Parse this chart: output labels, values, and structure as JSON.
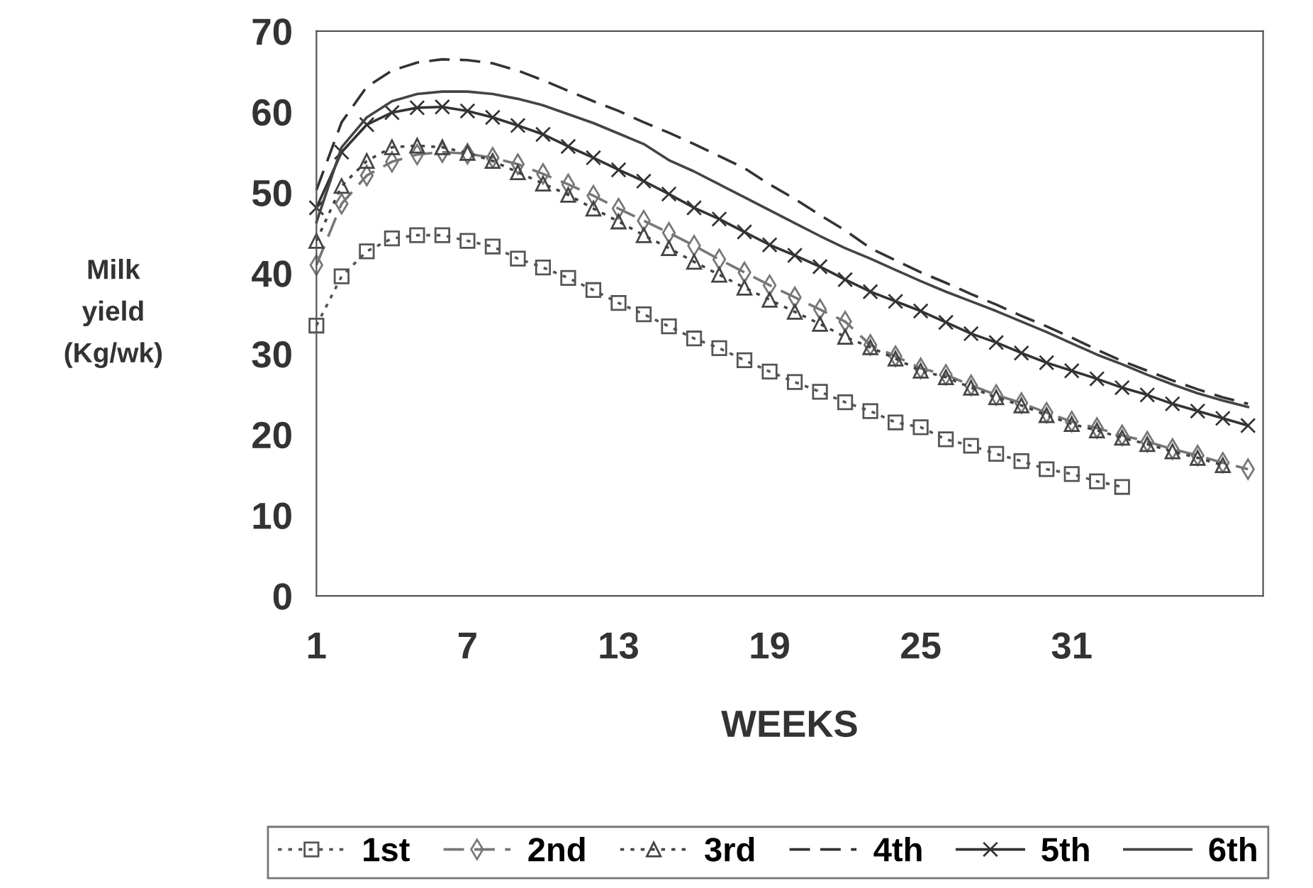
{
  "chart_data": {
    "type": "line",
    "xlabel": "WEEKS",
    "ylabel": "Milk\nyield\n(Kg/wk)",
    "x": [
      1,
      2,
      3,
      4,
      5,
      6,
      7,
      8,
      9,
      10,
      11,
      12,
      13,
      14,
      15,
      16,
      17,
      18,
      19,
      20,
      21,
      22,
      23,
      24,
      25,
      26,
      27,
      28,
      29,
      30,
      31,
      32,
      33,
      34,
      35,
      36,
      37,
      38
    ],
    "xlim": [
      1,
      38.6
    ],
    "ylim": [
      0,
      70
    ],
    "xticks": [
      1,
      7,
      13,
      19,
      25,
      31
    ],
    "yticks": [
      0,
      10,
      20,
      30,
      40,
      50,
      60,
      70
    ],
    "grid": false,
    "legend": "bottom",
    "series": [
      {
        "name": "1st",
        "color": "#555555",
        "marker": "square",
        "line_style": "dotted",
        "x": [
          1,
          2,
          3,
          4,
          5,
          6,
          7,
          8,
          9,
          10,
          11,
          12,
          13,
          14,
          15,
          16,
          17,
          18,
          19,
          20,
          21,
          22,
          23,
          24,
          25,
          26,
          27,
          28,
          29,
          30,
          31,
          32,
          33
        ],
        "values": [
          33.5,
          39.6,
          42.7,
          44.3,
          44.7,
          44.7,
          44.0,
          43.3,
          41.8,
          40.7,
          39.4,
          37.9,
          36.3,
          34.9,
          33.4,
          31.9,
          30.7,
          29.2,
          27.8,
          26.5,
          25.3,
          24.0,
          22.9,
          21.5,
          20.9,
          19.4,
          18.6,
          17.6,
          16.7,
          15.7,
          15.1,
          14.2,
          13.5
        ]
      },
      {
        "name": "2nd",
        "color": "#777777",
        "marker": "diamond",
        "line_style": "dashed",
        "values": [
          41.0,
          48.6,
          52.1,
          53.8,
          54.7,
          55.0,
          54.8,
          54.3,
          53.5,
          52.3,
          51.0,
          49.6,
          48.0,
          46.5,
          45.0,
          43.4,
          41.7,
          40.1,
          38.5,
          37.0,
          35.5,
          34.0,
          31.1,
          29.7,
          28.2,
          27.4,
          26.1,
          24.9,
          23.9,
          22.7,
          21.6,
          20.8,
          19.9,
          19.1,
          18.2,
          17.4,
          16.5,
          15.7
        ]
      },
      {
        "name": "3rd",
        "color": "#444444",
        "marker": "triangle",
        "line_style": "dotted",
        "values": [
          44.0,
          50.8,
          53.9,
          55.6,
          55.8,
          55.6,
          54.9,
          53.9,
          52.5,
          51.1,
          49.7,
          48.0,
          46.4,
          44.7,
          43.1,
          41.4,
          39.8,
          38.2,
          36.7,
          35.2,
          33.7,
          32.1,
          30.8,
          29.4,
          27.9,
          27.1,
          25.8,
          24.6,
          23.6,
          22.4,
          21.3,
          20.5,
          19.6,
          18.8,
          17.9,
          17.1,
          16.2,
          null
        ]
      },
      {
        "name": "4th",
        "color": "#333333",
        "marker": "none",
        "line_style": "dashed",
        "values": [
          50.3,
          58.7,
          63.1,
          65.1,
          66.1,
          66.5,
          66.4,
          66.0,
          65.1,
          63.9,
          62.6,
          61.3,
          60.1,
          58.7,
          57.4,
          56.0,
          54.5,
          53.0,
          51.0,
          49.2,
          47.2,
          45.3,
          43.1,
          41.6,
          40.1,
          38.8,
          37.4,
          36.1,
          34.7,
          33.4,
          32.0,
          30.5,
          29.1,
          27.9,
          26.7,
          25.6,
          24.6,
          23.8
        ]
      },
      {
        "name": "5th",
        "color": "#333333",
        "marker": "cross",
        "line_style": "solid",
        "values": [
          48.1,
          55.0,
          58.4,
          59.9,
          60.5,
          60.6,
          60.1,
          59.3,
          58.3,
          57.2,
          55.7,
          54.3,
          52.8,
          51.4,
          49.8,
          48.1,
          46.7,
          45.1,
          43.5,
          42.2,
          40.8,
          39.2,
          37.7,
          36.5,
          35.3,
          33.9,
          32.5,
          31.4,
          30.1,
          28.9,
          27.9,
          26.9,
          25.8,
          24.9,
          23.8,
          22.9,
          22.0,
          21.1
        ]
      },
      {
        "name": "6th",
        "color": "#444444",
        "marker": "none",
        "line_style": "solid",
        "values": [
          46.3,
          55.6,
          59.3,
          61.3,
          62.2,
          62.5,
          62.5,
          62.2,
          61.6,
          60.8,
          59.7,
          58.6,
          57.3,
          56.0,
          54.0,
          52.6,
          51.0,
          49.4,
          47.8,
          46.2,
          44.6,
          43.1,
          41.8,
          40.4,
          39.0,
          37.7,
          36.5,
          35.3,
          34.0,
          32.7,
          31.3,
          29.9,
          28.7,
          27.4,
          26.2,
          25.1,
          24.2,
          23.4
        ]
      }
    ]
  }
}
